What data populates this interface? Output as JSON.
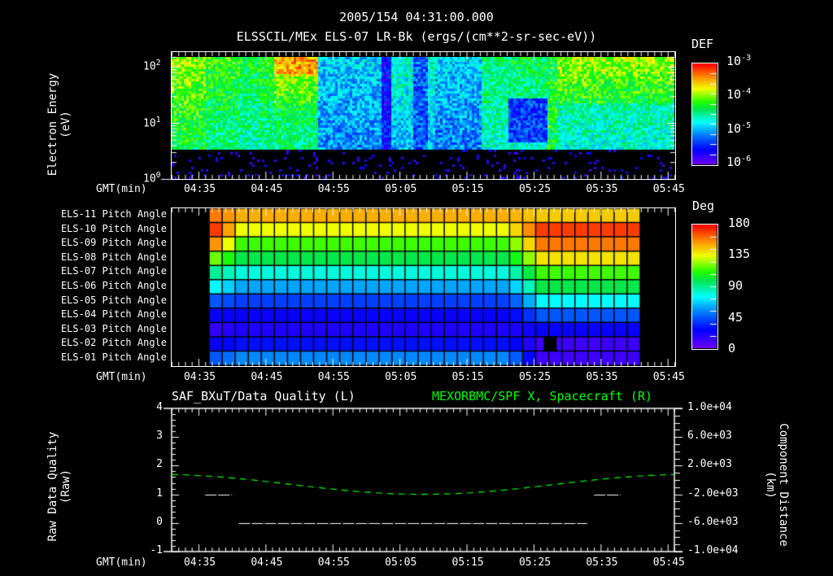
{
  "header": {
    "timestamp": "2005/154 04:31:00.000",
    "subtitle": "ELSSCIL/MEx ELS-07 LR-Bk  (ergs/(cm**2-sr-sec-eV))"
  },
  "panels": {
    "spectrogram": {
      "ylabel_line1": "Electron Energy",
      "ylabel_line2": "(eV)",
      "yticks": [
        {
          "base": "10",
          "exp": "2"
        },
        {
          "base": "10",
          "exp": "1"
        },
        {
          "base": "10",
          "exp": "0"
        }
      ],
      "xlabel": "GMT(min)",
      "xticks": [
        "04:35",
        "04:45",
        "04:55",
        "05:05",
        "05:15",
        "05:25",
        "05:35",
        "05:45"
      ],
      "colorbar": {
        "title": "DEF",
        "ticks": [
          {
            "base": "10",
            "exp": "-3"
          },
          {
            "base": "10",
            "exp": "-4"
          },
          {
            "base": "10",
            "exp": "-5"
          },
          {
            "base": "10",
            "exp": "-6"
          }
        ]
      }
    },
    "pitch": {
      "row_labels": [
        "ELS-11 Pitch Angle",
        "ELS-10 Pitch Angle",
        "ELS-09 Pitch Angle",
        "ELS-08 Pitch Angle",
        "ELS-07 Pitch Angle",
        "ELS-06 Pitch Angle",
        "ELS-05 Pitch Angle",
        "ELS-04 Pitch Angle",
        "ELS-03 Pitch Angle",
        "ELS-02 Pitch Angle",
        "ELS-01 Pitch Angle"
      ],
      "xlabel": "GMT(min)",
      "xticks": [
        "04:35",
        "04:45",
        "04:55",
        "05:05",
        "05:15",
        "05:25",
        "05:35",
        "05:45"
      ],
      "colorbar": {
        "title": "Deg",
        "ticks": [
          "180",
          "135",
          "90",
          "45",
          "0"
        ]
      }
    },
    "lineplot": {
      "left_title": "SAF_BXuT/Data Quality (L)",
      "right_title": "MEXORBMC/SPF X, Spacecraft (R)",
      "ylabel_left_line1": "Raw Data Quality",
      "ylabel_left_line2": "(Raw)",
      "ylabel_right_line1": "Component Distance",
      "ylabel_right_line2": "(km)",
      "yticks_left": [
        "4",
        "3",
        "2",
        "1",
        "0",
        "-1"
      ],
      "yticks_right": [
        "1.0e+04",
        "6.0e+03",
        "2.0e+03",
        "-2.0e+03",
        "-6.0e+03",
        "-1.0e+04"
      ],
      "xlabel": "GMT(min)",
      "xticks": [
        "04:35",
        "04:45",
        "04:55",
        "05:05",
        "05:15",
        "05:25",
        "05:35",
        "05:45"
      ]
    }
  },
  "colors": {
    "background": "#000000",
    "axis": "#ffffff",
    "right_series": "#00ff00"
  },
  "chart_data": [
    {
      "type": "heatmap",
      "title": "ELSSCIL/MEx ELS-07 LR-Bk (ergs/(cm**2-sr-sec-eV))",
      "xlabel": "GMT(min)",
      "ylabel": "Electron Energy (eV)",
      "yscale": "log",
      "ylim": [
        1,
        150
      ],
      "x_range": [
        "04:31",
        "05:46"
      ],
      "colorbar": {
        "label": "DEF",
        "scale": "log",
        "range": [
          1e-06,
          0.001
        ]
      },
      "notes": "High flux (orange/red ~1e-3.3) near 04:47-04:52 at >50 eV; depleted blue region 04:52-05:23; green-yellow band after 05:27 at 30-100 eV; data floor ~4 eV"
    },
    {
      "type": "heatmap",
      "title": "Pitch Angle",
      "xlabel": "GMT(min)",
      "categories_y": [
        "ELS-11",
        "ELS-10",
        "ELS-09",
        "ELS-08",
        "ELS-07",
        "ELS-06",
        "ELS-05",
        "ELS-04",
        "ELS-03",
        "ELS-02",
        "ELS-01"
      ],
      "x_range": [
        "04:37",
        "05:41"
      ],
      "colorbar": {
        "label": "Deg",
        "range": [
          0,
          180
        ]
      },
      "approx_values_deg": {
        "ELS-11": [
          150,
          145
        ],
        "ELS-10": [
          135,
          170
        ],
        "ELS-09": [
          115,
          160
        ],
        "ELS-08": [
          100,
          140
        ],
        "ELS-07": [
          80,
          115
        ],
        "ELS-06": [
          60,
          100
        ],
        "ELS-05": [
          40,
          75
        ],
        "ELS-04": [
          25,
          45
        ],
        "ELS-03": [
          20,
          25
        ],
        "ELS-02": [
          30,
          12
        ],
        "ELS-01": [
          55,
          12
        ]
      },
      "approx_values_note": "pairs are [before 05:22, after 05:27]"
    },
    {
      "type": "line",
      "title": "SAF_BXuT/Data Quality (L) / MEXORBMC/SPF X, Spacecraft (R)",
      "xlabel": "GMT(min)",
      "x": [
        "04:31",
        "04:35",
        "04:41",
        "04:45",
        "04:55",
        "05:05",
        "05:15",
        "05:25",
        "05:34",
        "05:35",
        "05:45"
      ],
      "series": [
        {
          "name": "SAF_BXuT/Data Quality (L)",
          "axis": "left",
          "ylim": [
            -1,
            4
          ],
          "segments": [
            {
              "from": "04:36",
              "to": "04:40",
              "value": 1
            },
            {
              "from": "04:41",
              "to": "05:33",
              "value": 0
            },
            {
              "from": "05:34",
              "to": "05:38",
              "value": 1
            }
          ]
        },
        {
          "name": "MEXORBMC/SPF X, Spacecraft (R)",
          "axis": "right",
          "ylim": [
            -10000,
            10000
          ],
          "values": [
            500,
            200,
            -500,
            -800,
            -1500,
            -2000,
            -2000,
            -1400,
            -700,
            -600,
            500
          ]
        }
      ]
    }
  ]
}
